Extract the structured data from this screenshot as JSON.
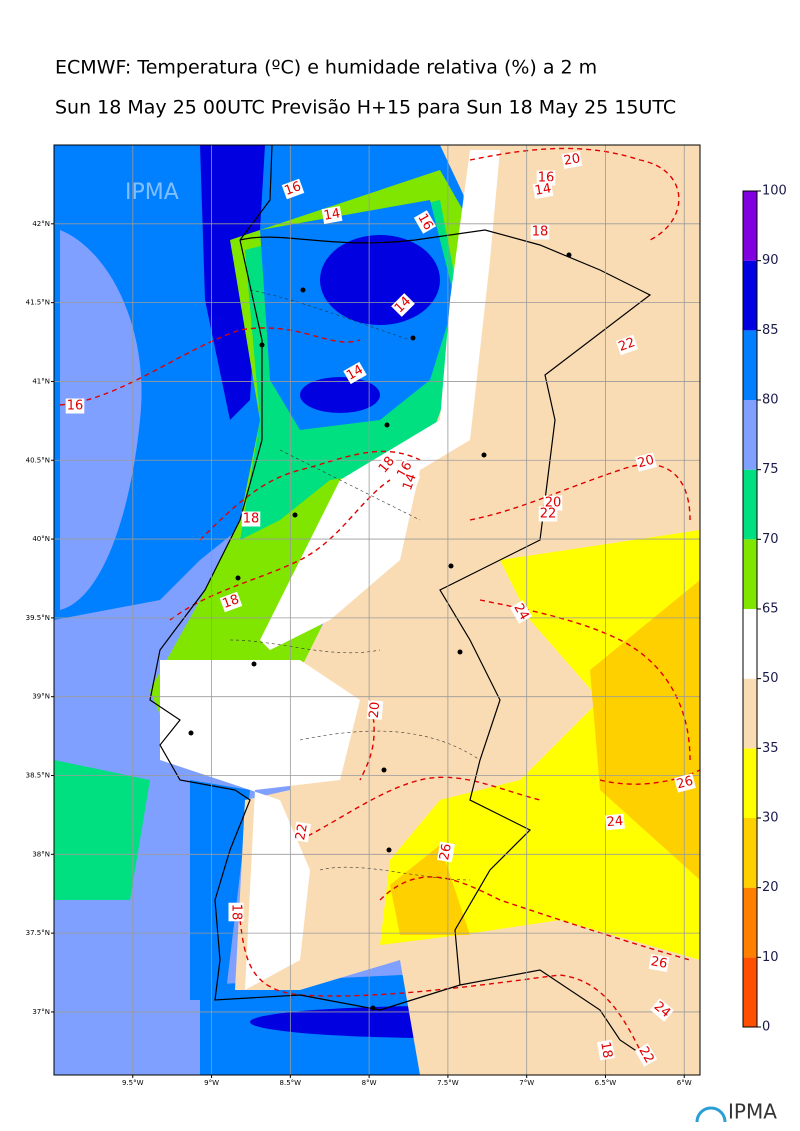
{
  "title": "ECMWF: Temperatura (ºC) e humidade relativa (%) a 2 m",
  "subtitle": "Sun 18 May 25 00UTC Previsão H+15 para Sun 18 May 25 15UTC",
  "watermark": "IPMA",
  "logo": "IPMA",
  "map": {
    "xlim": [
      -10,
      -5.9
    ],
    "ylim": [
      36.6,
      42.5
    ],
    "grid": true,
    "xticks": [
      {
        "value": -9.5,
        "label": "9.5°W"
      },
      {
        "value": -9,
        "label": "9°W"
      },
      {
        "value": -8.5,
        "label": "8.5°W"
      },
      {
        "value": -8,
        "label": "8°W"
      },
      {
        "value": -7.5,
        "label": "7.5°W"
      },
      {
        "value": -7,
        "label": "7°W"
      },
      {
        "value": -6.5,
        "label": "6.5°W"
      },
      {
        "value": -6,
        "label": "6°W"
      }
    ],
    "yticks": [
      {
        "value": 37,
        "label": "37°N"
      },
      {
        "value": 37.5,
        "label": "37.5°N"
      },
      {
        "value": 38,
        "label": "38°N"
      },
      {
        "value": 38.5,
        "label": "38.5°N"
      },
      {
        "value": 39,
        "label": "39°N"
      },
      {
        "value": 39.5,
        "label": "39.5°N"
      },
      {
        "value": 40,
        "label": "40°N"
      },
      {
        "value": 40.5,
        "label": "40.5°N"
      },
      {
        "value": 41,
        "label": "41°N"
      },
      {
        "value": 41.5,
        "label": "41.5°N"
      },
      {
        "value": 42,
        "label": "42°N"
      }
    ]
  },
  "contour_labels": [
    16,
    14,
    16,
    20,
    16,
    14,
    18,
    14,
    22,
    14,
    16,
    18,
    16,
    14,
    20,
    20,
    22,
    18,
    18,
    24,
    20,
    26,
    24,
    22,
    26,
    18,
    26,
    24,
    18,
    22
  ],
  "colorbar": {
    "levels": [
      0,
      10,
      20,
      30,
      35,
      50,
      65,
      70,
      75,
      80,
      85,
      90,
      100
    ],
    "colors": [
      "#ff5000",
      "#ff8000",
      "#ffd000",
      "#ffff00",
      "#fadcb4",
      "#ffffff",
      "#80e600",
      "#00e080",
      "#80a0ff",
      "#0080ff",
      "#0000e0",
      "#8000e0"
    ]
  }
}
